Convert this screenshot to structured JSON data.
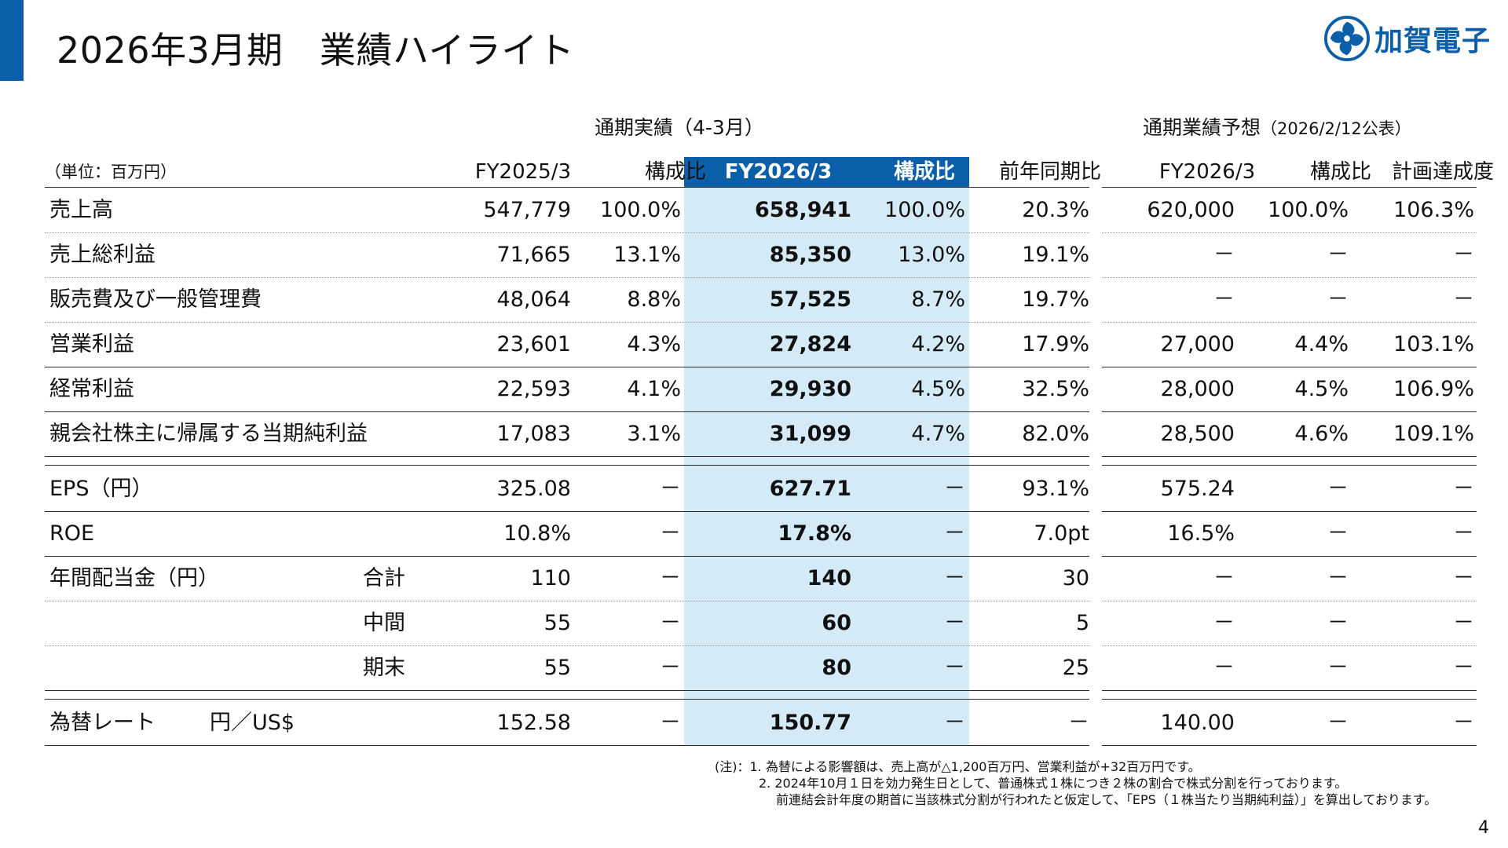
{
  "title": "2026年3月期　業績ハイライト",
  "logo": {
    "text": "加賀電子",
    "icon": "kaga-logo-icon"
  },
  "colors": {
    "accent": "#0a5fa8",
    "highlight": "#d4eaf6"
  },
  "group_headers": {
    "actual": "通期実績（4-3月）",
    "forecast": "通期業績予想",
    "forecast_date": "（2026/2/12公表）"
  },
  "table": {
    "unit": "（単位：百万円）",
    "columns": [
      "FY2025/3",
      "構成比",
      "FY2026/3",
      "構成比",
      "前年同期比",
      "FY2026/3",
      "構成比",
      "計画達成度"
    ],
    "rows": [
      {
        "label": "売上高",
        "sub": "",
        "values": [
          "547,779",
          "100.0%",
          "658,941",
          "100.0%",
          "20.3%",
          "620,000",
          "100.0%",
          "106.3%"
        ]
      },
      {
        "label": "売上総利益",
        "sub": "",
        "values": [
          "71,665",
          "13.1%",
          "85,350",
          "13.0%",
          "19.1%",
          "－",
          "－",
          "－"
        ]
      },
      {
        "label": "販売費及び一般管理費",
        "sub": "",
        "values": [
          "48,064",
          "8.8%",
          "57,525",
          "8.7%",
          "19.7%",
          "－",
          "－",
          "－"
        ]
      },
      {
        "label": "営業利益",
        "sub": "",
        "values": [
          "23,601",
          "4.3%",
          "27,824",
          "4.2%",
          "17.9%",
          "27,000",
          "4.4%",
          "103.1%"
        ]
      },
      {
        "label": "経常利益",
        "sub": "",
        "values": [
          "22,593",
          "4.1%",
          "29,930",
          "4.5%",
          "32.5%",
          "28,000",
          "4.5%",
          "106.9%"
        ]
      },
      {
        "label": "親会社株主に帰属する当期純利益",
        "sub": "",
        "values": [
          "17,083",
          "3.1%",
          "31,099",
          "4.7%",
          "82.0%",
          "28,500",
          "4.6%",
          "109.1%"
        ]
      },
      {
        "label": "EPS（円）",
        "sub": "",
        "values": [
          "325.08",
          "－",
          "627.71",
          "－",
          "93.1%",
          "575.24",
          "－",
          "－"
        ]
      },
      {
        "label": "ROE",
        "sub": "",
        "values": [
          "10.8%",
          "－",
          "17.8%",
          "－",
          "7.0pt",
          "16.5%",
          "－",
          "－"
        ]
      },
      {
        "label": "年間配当金（円）",
        "sub": "合計",
        "values": [
          "110",
          "－",
          "140",
          "－",
          "30",
          "－",
          "－",
          "－"
        ]
      },
      {
        "label": "",
        "sub": "中間",
        "values": [
          "55",
          "－",
          "60",
          "－",
          "5",
          "－",
          "－",
          "－"
        ]
      },
      {
        "label": "",
        "sub": "期末",
        "values": [
          "55",
          "－",
          "80",
          "－",
          "25",
          "－",
          "－",
          "－"
        ]
      },
      {
        "label": "為替レート",
        "sub": "円／US$",
        "values": [
          "152.58",
          "－",
          "150.77",
          "－",
          "－",
          "140.00",
          "－",
          "－"
        ]
      }
    ]
  },
  "notes": [
    "(注)：1. 為替による影響額は、売上高が△1,200百万円、営業利益が+32百万円です。",
    "2. 2024年10月１日を効力発生日として、普通株式１株につき２株の割合で株式分割を行っております。",
    "前連結会計年度の期首に当該株式分割が行われたと仮定して、「EPS（１株当たり当期純利益）」を算出しております。"
  ],
  "page_number": "4"
}
